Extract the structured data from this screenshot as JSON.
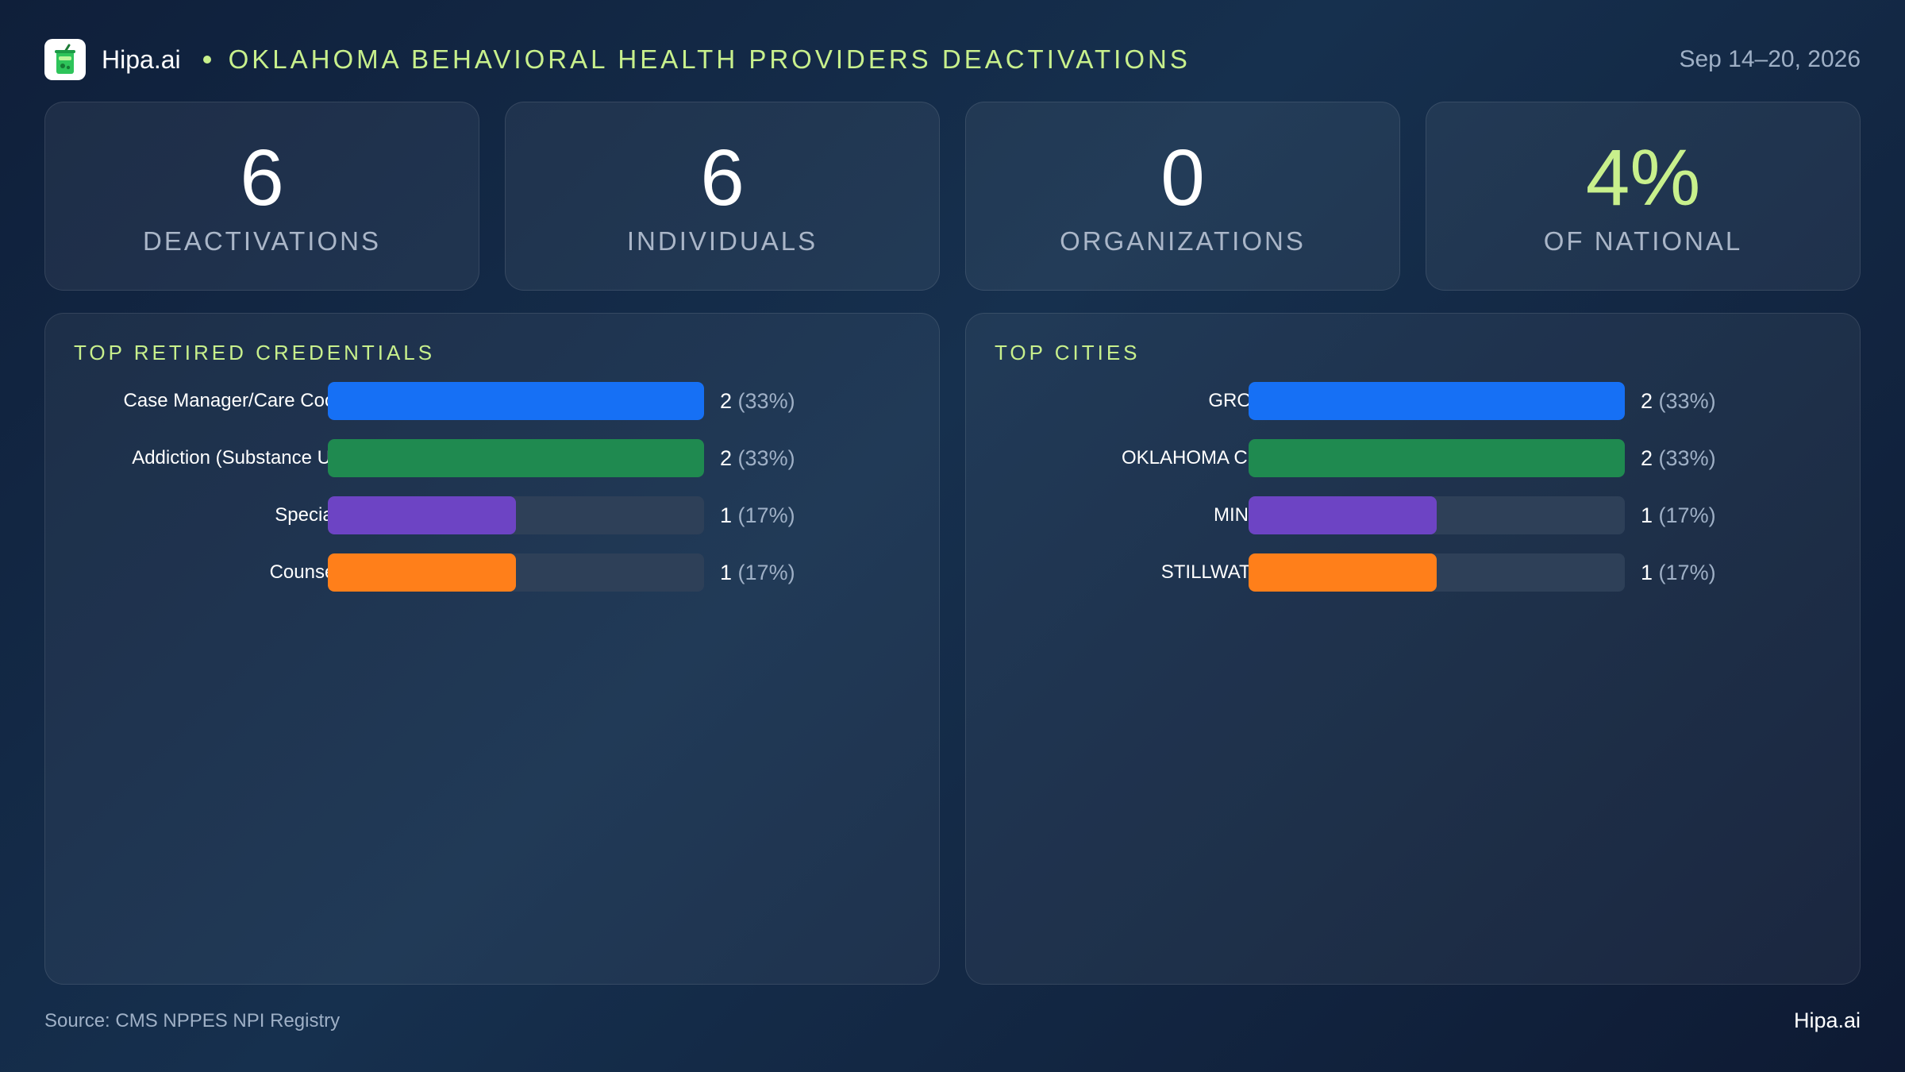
{
  "header": {
    "brand": "Hipa.ai",
    "title": "OKLAHOMA BEHAVIORAL HEALTH PROVIDERS DEACTIVATIONS",
    "date_range": "Sep 14–20, 2026",
    "logo_icon": "cup-icon"
  },
  "kpis": [
    {
      "value": "6",
      "label": "DEACTIVATIONS",
      "color": "#ffffff"
    },
    {
      "value": "6",
      "label": "INDIVIDUALS",
      "color": "#ffffff"
    },
    {
      "value": "0",
      "label": "ORGANIZATIONS",
      "color": "#ffffff"
    },
    {
      "value": "4%",
      "label": "OF NATIONAL",
      "color": "#c8f08c"
    }
  ],
  "chart_data": [
    {
      "type": "bar",
      "orientation": "horizontal",
      "title": "TOP RETIRED CREDENTIALS",
      "categories": [
        "Case Manager/Care Coor...",
        "Addiction (Substance Us...",
        "Specialist",
        "Counselor"
      ],
      "values": [
        2,
        2,
        1,
        1
      ],
      "value_labels": [
        "2",
        "2",
        "1",
        "1"
      ],
      "percent_labels": [
        "(33%)",
        "(33%)",
        "(17%)",
        "(17%)"
      ],
      "xlim": [
        0,
        2
      ],
      "colors": [
        "#1670f5",
        "#1f8a50",
        "#6d44c4",
        "#ff7f1a"
      ],
      "grid": false
    },
    {
      "type": "bar",
      "orientation": "horizontal",
      "title": "TOP CITIES",
      "categories": [
        "GROVE",
        "OKLAHOMA CITY",
        "MINCO",
        "STILLWATER"
      ],
      "values": [
        2,
        2,
        1,
        1
      ],
      "value_labels": [
        "2",
        "2",
        "1",
        "1"
      ],
      "percent_labels": [
        "(33%)",
        "(33%)",
        "(17%)",
        "(17%)"
      ],
      "xlim": [
        0,
        2
      ],
      "colors": [
        "#1670f5",
        "#1f8a50",
        "#6d44c4",
        "#ff7f1a"
      ],
      "grid": false
    }
  ],
  "footer": {
    "source": "Source: CMS NPPES NPI Registry",
    "brand": "Hipa.ai"
  }
}
